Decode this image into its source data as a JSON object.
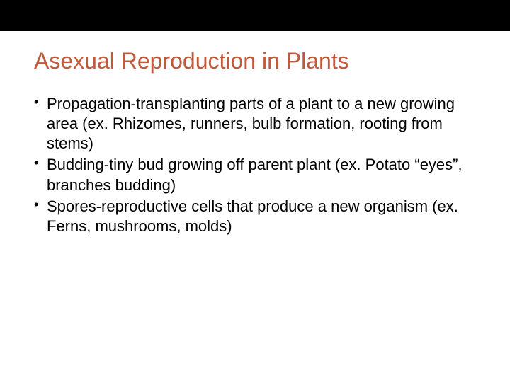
{
  "slide": {
    "title": "Asexual Reproduction in Plants",
    "title_color": "#c15a3b",
    "title_fontsize": 32,
    "body_fontsize": 22,
    "body_color": "#000000",
    "background_color": "#ffffff",
    "top_bar_color": "#000000",
    "bullets": [
      "Propagation-transplanting parts of a plant to a new growing area (ex. Rhizomes, runners, bulb formation, rooting from stems)",
      "Budding-tiny bud growing off parent plant (ex. Potato “eyes”, branches budding)",
      "Spores-reproductive cells that produce a new organism (ex. Ferns, mushrooms, molds)"
    ]
  }
}
